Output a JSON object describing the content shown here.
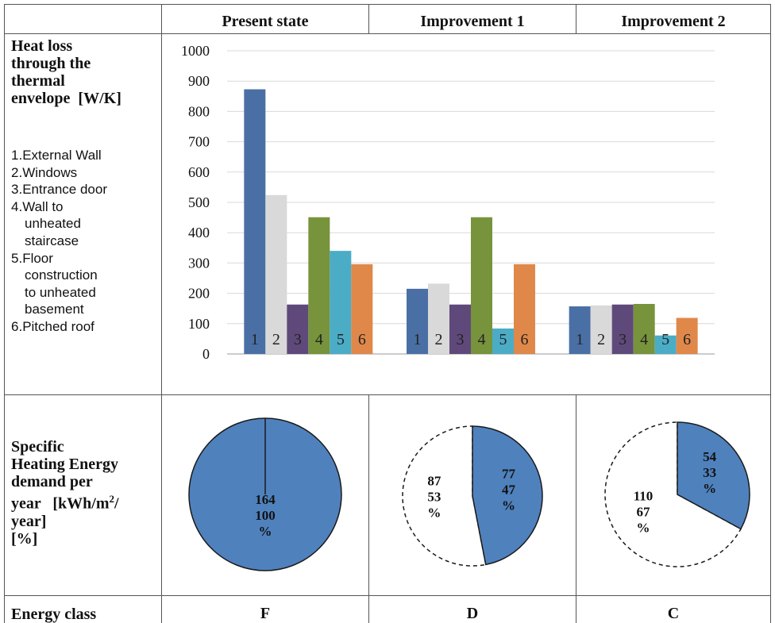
{
  "header": {
    "col1": "Present state",
    "col2": "Improvement 1",
    "col3": "Improvement 2"
  },
  "rows": {
    "heat_loss_label": "Heat loss through the thermal envelope [W/K]",
    "heat_loss_lines": [
      "Heat loss",
      "through the",
      "thermal",
      "envelope  [W/K]"
    ],
    "legend": [
      {
        "num": "1.",
        "lines": [
          "External Wall"
        ]
      },
      {
        "num": "2.",
        "lines": [
          "Windows"
        ]
      },
      {
        "num": "3.",
        "lines": [
          "Entrance door"
        ]
      },
      {
        "num": "4.",
        "lines": [
          "Wall to",
          "unheated",
          "staircase"
        ]
      },
      {
        "num": "5.",
        "lines": [
          "Floor",
          "construction",
          "to unheated",
          "basement"
        ]
      },
      {
        "num": "6.",
        "lines": [
          "Pitched roof"
        ]
      }
    ],
    "specific_heating_lines": [
      "Specific",
      "Heating Energy",
      "demand per",
      "year   [kWh/m",
      "year]",
      "[%]"
    ],
    "energy_class_label": "Energy class"
  },
  "energy_classes": [
    "F",
    "D",
    "C"
  ],
  "colors": {
    "s1": "#4a6fa5",
    "s2": "#d9d9d9",
    "s3": "#5f497a",
    "s4": "#77933c",
    "s5": "#4bacc6",
    "s6": "#e0884a",
    "pie_fill": "#4f81bd",
    "grid": "#d9d9d9",
    "border": "#555555"
  },
  "chart_data": [
    {
      "type": "bar",
      "title": "",
      "categories": [
        "Present state",
        "Improvement 1",
        "Improvement 2"
      ],
      "bar_labels": [
        "1",
        "2",
        "3",
        "4",
        "5",
        "6"
      ],
      "series": [
        {
          "name": "External Wall",
          "values": [
            873,
            215,
            157
          ]
        },
        {
          "name": "Windows",
          "values": [
            524,
            232,
            160
          ]
        },
        {
          "name": "Entrance door",
          "values": [
            163,
            163,
            163
          ]
        },
        {
          "name": "Wall to unheated staircase",
          "values": [
            451,
            451,
            165
          ]
        },
        {
          "name": "Floor construction to unheated basement",
          "values": [
            340,
            84,
            61
          ]
        },
        {
          "name": "Pitched roof",
          "values": [
            296,
            296,
            119
          ]
        }
      ],
      "ylim": [
        0,
        1000
      ],
      "yticks": [
        0,
        100,
        200,
        300,
        400,
        500,
        600,
        700,
        800,
        900,
        1000
      ],
      "ylabel": "",
      "xlabel": "",
      "grid": true
    },
    {
      "type": "pie",
      "title": "Present state",
      "slices": [
        {
          "value": 164,
          "label_lines": [
            "164",
            "100",
            "%"
          ],
          "filled": true
        }
      ]
    },
    {
      "type": "pie",
      "title": "Improvement 1",
      "slices": [
        {
          "value": 77,
          "label_lines": [
            "77",
            "47",
            "%"
          ],
          "filled": true
        },
        {
          "value": 87,
          "label_lines": [
            "87",
            "53",
            "%"
          ],
          "filled": false
        }
      ]
    },
    {
      "type": "pie",
      "title": "Improvement 2",
      "slices": [
        {
          "value": 54,
          "label_lines": [
            "54",
            "33",
            "%"
          ],
          "filled": true
        },
        {
          "value": 110,
          "label_lines": [
            "110",
            "67",
            "%"
          ],
          "filled": false
        }
      ]
    }
  ]
}
